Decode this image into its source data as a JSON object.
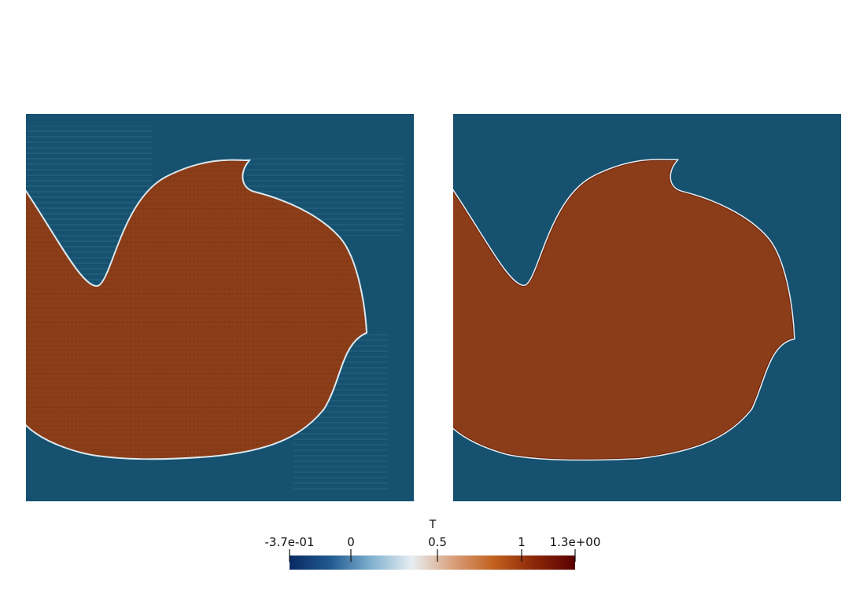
{
  "colorbar": {
    "title": "T",
    "tick_labels": [
      "-3.7e-01",
      "0",
      "0.5",
      "1",
      "1.3e+00"
    ],
    "colormap": [
      "#0a2a63",
      "#1f5a8f",
      "#7fb0cf",
      "#e8eef2",
      "#d9a07c",
      "#c2611f",
      "#8b2708",
      "#5a0000"
    ]
  },
  "panels": {
    "left": {
      "background_color": "#16516f",
      "fill_color": "#8a3d18",
      "ripples": true
    },
    "right": {
      "background_color": "#16516f",
      "fill_color": "#8a3d18",
      "ripples": false
    }
  }
}
